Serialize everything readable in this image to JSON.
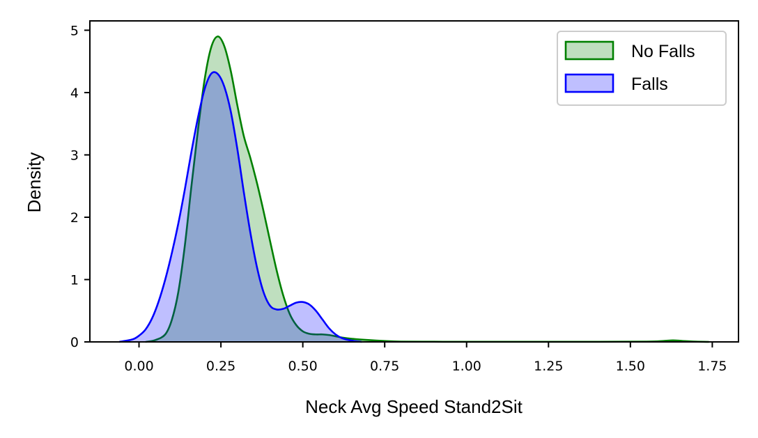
{
  "chart_data": {
    "type": "area",
    "title": "",
    "xlabel": "Neck Avg Speed Stand2Sit",
    "ylabel": "Density",
    "xlim": [
      -0.15,
      1.83
    ],
    "ylim": [
      0,
      5.15
    ],
    "xticks": [
      0.0,
      0.25,
      0.5,
      0.75,
      1.0,
      1.25,
      1.5,
      1.75
    ],
    "xtick_labels": [
      "0.00",
      "0.25",
      "0.50",
      "0.75",
      "1.00",
      "1.25",
      "1.50",
      "1.75"
    ],
    "yticks": [
      0,
      1,
      2,
      3,
      4,
      5
    ],
    "ytick_labels": [
      "0",
      "1",
      "2",
      "3",
      "4",
      "5"
    ],
    "grid": false,
    "legend_position": "top-right",
    "series": [
      {
        "name": "No Falls",
        "line_color": "#008000",
        "fill_color": "#008000",
        "fill_opacity": 0.25,
        "x": [
          0.02,
          0.05,
          0.08,
          0.1,
          0.12,
          0.14,
          0.16,
          0.18,
          0.2,
          0.22,
          0.24,
          0.26,
          0.28,
          0.3,
          0.32,
          0.34,
          0.36,
          0.38,
          0.4,
          0.42,
          0.44,
          0.46,
          0.48,
          0.5,
          0.52,
          0.54,
          0.56,
          0.58,
          0.6,
          0.62,
          0.65,
          0.7,
          0.75,
          0.8,
          0.9,
          1.0,
          1.2,
          1.4,
          1.55,
          1.6,
          1.63,
          1.66,
          1.7,
          1.74
        ],
        "y": [
          0.0,
          0.03,
          0.12,
          0.35,
          0.8,
          1.55,
          2.5,
          3.4,
          4.2,
          4.72,
          4.9,
          4.75,
          4.35,
          3.8,
          3.3,
          2.95,
          2.55,
          2.1,
          1.62,
          1.15,
          0.75,
          0.45,
          0.27,
          0.17,
          0.13,
          0.12,
          0.12,
          0.11,
          0.09,
          0.07,
          0.05,
          0.03,
          0.015,
          0.005,
          0.003,
          0.002,
          0.002,
          0.002,
          0.005,
          0.015,
          0.025,
          0.015,
          0.005,
          0.0
        ]
      },
      {
        "name": "Falls",
        "line_color": "#0000ff",
        "fill_color": "#0000ff",
        "fill_opacity": 0.25,
        "x": [
          -0.06,
          -0.02,
          0.0,
          0.02,
          0.04,
          0.06,
          0.08,
          0.1,
          0.12,
          0.14,
          0.16,
          0.18,
          0.2,
          0.22,
          0.24,
          0.26,
          0.28,
          0.3,
          0.32,
          0.34,
          0.36,
          0.38,
          0.4,
          0.42,
          0.44,
          0.46,
          0.48,
          0.5,
          0.52,
          0.54,
          0.56,
          0.58,
          0.6,
          0.62,
          0.65,
          0.68
        ],
        "y": [
          0.0,
          0.04,
          0.1,
          0.2,
          0.38,
          0.65,
          1.0,
          1.42,
          1.9,
          2.45,
          3.05,
          3.6,
          4.05,
          4.3,
          4.3,
          4.1,
          3.7,
          3.1,
          2.4,
          1.75,
          1.2,
          0.8,
          0.58,
          0.52,
          0.53,
          0.58,
          0.63,
          0.64,
          0.6,
          0.5,
          0.36,
          0.22,
          0.12,
          0.06,
          0.02,
          0.0
        ]
      }
    ]
  }
}
